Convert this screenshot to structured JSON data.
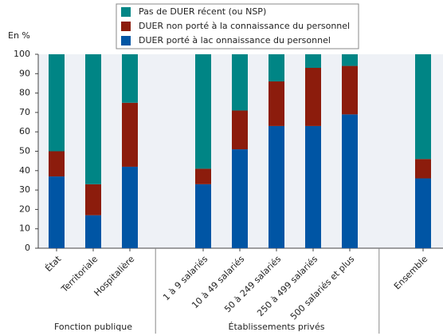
{
  "chart_data": {
    "type": "stacked_bar",
    "y_label": "En %",
    "groups": [
      {
        "name": "Fonction publique",
        "categories": [
          "État",
          "Territoriale",
          "Hospitalière"
        ]
      },
      {
        "name": "Établissements privés",
        "categories": [
          "1 à 9 salariés",
          "10 à 49 salariés",
          "50 à 249 salariés",
          "250 à 499 salariés",
          "500 salariés et plus"
        ]
      },
      {
        "categories": [
          "Ensemble"
        ]
      }
    ],
    "series": [
      {
        "name": "Pas de DUER récent (ou NSP)",
        "color": "#008585",
        "values": [
          50,
          67,
          25,
          59,
          29,
          14,
          7,
          6,
          54
        ]
      },
      {
        "name": "DUER non porté à la connaissance du personnel",
        "color": "#8c1c0c",
        "values": [
          13,
          16,
          33,
          8,
          20,
          23,
          30,
          25,
          10
        ]
      },
      {
        "name": "DUER porté à lac onnaissance du personnel",
        "color": "#0055a4",
        "values": [
          37,
          17,
          42,
          33,
          51,
          63,
          63,
          69,
          36
        ]
      }
    ],
    "ylim": [
      0,
      100
    ],
    "yticks": [
      0,
      10,
      20,
      30,
      40,
      50,
      60,
      70,
      80,
      90,
      100
    ],
    "grid": false
  }
}
